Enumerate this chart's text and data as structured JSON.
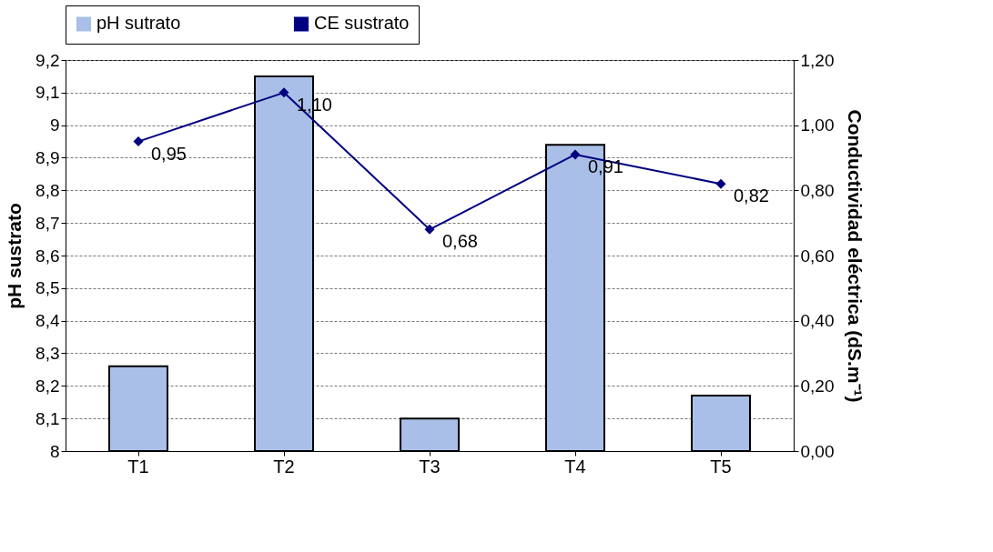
{
  "chart_data": {
    "type": "bar",
    "categories": [
      "T1",
      "T2",
      "T3",
      "T4",
      "T5"
    ],
    "series": [
      {
        "name": "pH sutrato",
        "color": "#a9bfe8",
        "values": [
          8.26,
          9.15,
          8.1,
          8.94,
          8.17
        ]
      },
      {
        "name": "CE sustrato",
        "type": "line",
        "axis": "y2",
        "color": "#000080",
        "marker": "diamond",
        "values": [
          0.95,
          1.1,
          0.68,
          0.91,
          0.82
        ],
        "value_labels": [
          "0,95",
          "1,10",
          "0,68",
          "0,91",
          "0,82"
        ]
      }
    ],
    "ylabel": "pH sustrato",
    "y2label": "Conductividad eléctrica (dS.m⁻¹)",
    "ylim": [
      8,
      9.2
    ],
    "yticks": [
      8,
      {
        "value": 8.1,
        "label": "8,1"
      },
      {
        "value": 8.2,
        "label": "8,2"
      },
      {
        "value": 8.3,
        "label": "8,3"
      },
      {
        "value": 8.4,
        "label": "8,4"
      },
      {
        "value": 8.5,
        "label": "8,5"
      },
      {
        "value": 8.6,
        "label": "8,6"
      },
      {
        "value": 8.7,
        "label": "8,7"
      },
      {
        "value": 8.8,
        "label": "8,8"
      },
      {
        "value": 8.9,
        "label": "8,9"
      },
      9,
      {
        "value": 9.1,
        "label": "9,1"
      },
      {
        "value": 9.2,
        "label": "9,2"
      }
    ],
    "y2lim": [
      0,
      1.2
    ],
    "y2ticks": [
      {
        "value": 0,
        "label": "0,00"
      },
      {
        "value": 0.2,
        "label": "0,20"
      },
      {
        "value": 0.4,
        "label": "0,40"
      },
      {
        "value": 0.6,
        "label": "0,60"
      },
      {
        "value": 0.8,
        "label": "0,80"
      },
      {
        "value": 1.0,
        "label": "1,00"
      },
      {
        "value": 1.2,
        "label": "1,20"
      }
    ],
    "grid": "y",
    "legend": "top"
  }
}
